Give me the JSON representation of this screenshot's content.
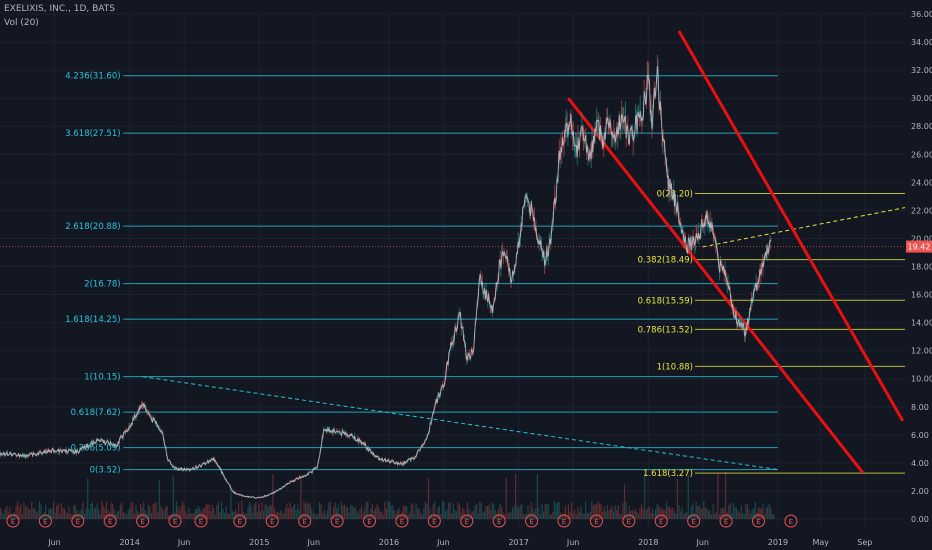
{
  "header": {
    "title": "EXELIXIS, INC., 1D, BATS",
    "volume_label": "Vol (20)"
  },
  "chart_data": {
    "type": "line",
    "price_axis": {
      "ticks": [
        0,
        2,
        4,
        6,
        8,
        10,
        12,
        14,
        16,
        18,
        20,
        22,
        24,
        26,
        28,
        30,
        32,
        34,
        36
      ]
    },
    "time_axis": {
      "labels": [
        "Jun",
        "2014",
        "Jun",
        "2015",
        "Jun",
        "2016",
        "Jun",
        "2017",
        "Jun",
        "2018",
        "Jun",
        "2019",
        "May",
        "Sep"
      ],
      "positions": [
        2013.42,
        2014.0,
        2014.42,
        2015.0,
        2015.42,
        2016.0,
        2016.42,
        2017.0,
        2017.42,
        2018.0,
        2018.42,
        2019.0,
        2019.33,
        2019.67
      ]
    },
    "last_price": "19.42",
    "price_series": {
      "x": [
        2013.0,
        2013.2,
        2013.4,
        2013.6,
        2013.75,
        2013.9,
        2014.0,
        2014.05,
        2014.1,
        2014.15,
        2014.2,
        2014.25,
        2014.3,
        2014.35,
        2014.45,
        2014.55,
        2014.65,
        2014.8,
        2014.9,
        2015.0,
        2015.1,
        2015.2,
        2015.3,
        2015.4,
        2015.45,
        2015.5,
        2015.6,
        2015.7,
        2015.8,
        2015.9,
        2016.0,
        2016.1,
        2016.2,
        2016.3,
        2016.35,
        2016.42,
        2016.48,
        2016.55,
        2016.6,
        2016.65,
        2016.7,
        2016.75,
        2016.8,
        2016.85,
        2016.9,
        2016.95,
        2017.0,
        2017.05,
        2017.1,
        2017.15,
        2017.2,
        2017.25,
        2017.32,
        2017.4,
        2017.45,
        2017.5,
        2017.55,
        2017.6,
        2017.65,
        2017.7,
        2017.75,
        2017.8,
        2017.85,
        2017.9,
        2017.95,
        2018.0,
        2018.03,
        2018.07,
        2018.1,
        2018.15,
        2018.2,
        2018.25,
        2018.3,
        2018.35,
        2018.4,
        2018.45,
        2018.5,
        2018.55,
        2018.6,
        2018.65,
        2018.7,
        2018.75,
        2018.8,
        2018.85,
        2018.9,
        2018.95
      ],
      "close": [
        4.7,
        4.5,
        4.9,
        4.8,
        5.6,
        5.3,
        6.6,
        7.4,
        8.3,
        7.4,
        6.9,
        6.2,
        4.1,
        3.6,
        3.5,
        3.8,
        4.3,
        1.9,
        1.6,
        1.5,
        1.8,
        2.4,
        2.9,
        3.3,
        3.8,
        6.4,
        6.2,
        6.0,
        5.4,
        4.4,
        4.1,
        3.9,
        4.4,
        6.0,
        8.0,
        9.5,
        12.5,
        14.5,
        11.5,
        12.0,
        17.0,
        16.0,
        15.0,
        18.0,
        19.0,
        17.0,
        19.5,
        23.0,
        22.0,
        20.0,
        18.5,
        20.0,
        26.0,
        28.5,
        26.5,
        27.5,
        25.5,
        28.0,
        27.0,
        28.5,
        27.5,
        29.0,
        27.0,
        28.0,
        29.0,
        31.0,
        28.5,
        32.0,
        28.5,
        24.0,
        23.0,
        21.0,
        19.5,
        19.8,
        20.5,
        21.5,
        20.5,
        18.0,
        17.5,
        15.0,
        14.0,
        13.3,
        15.5,
        17.0,
        19.0,
        19.4
      ]
    },
    "fib_left": [
      {
        "label": "4.236(31.60)",
        "value": 31.6
      },
      {
        "label": "3.618(27.51)",
        "value": 27.51
      },
      {
        "label": "2.618(20.88)",
        "value": 20.88
      },
      {
        "label": "2(16.78)",
        "value": 16.78
      },
      {
        "label": "1.618(14.25)",
        "value": 14.25
      },
      {
        "label": "1(10.15)",
        "value": 10.15
      },
      {
        "label": "0.618(7.62)",
        "value": 7.62
      },
      {
        "label": "0.236(5.09)",
        "value": 5.09
      },
      {
        "label": "0(3.52)",
        "value": 3.52
      }
    ],
    "fib_right": [
      {
        "label": "0(23.20)",
        "value": 23.2
      },
      {
        "label": "0.382(18.49)",
        "value": 18.49
      },
      {
        "label": "0.618(15.59)",
        "value": 15.59
      },
      {
        "label": "0.786(13.52)",
        "value": 13.52
      },
      {
        "label": "1(10.88)",
        "value": 10.88
      },
      {
        "label": "1.618(3.27)",
        "value": 3.27
      }
    ],
    "earnings_marker": "E",
    "earnings_x": [
      2013.1,
      2013.35,
      2013.6,
      2013.85,
      2014.1,
      2014.35,
      2014.55,
      2014.85,
      2015.1,
      2015.35,
      2015.6,
      2015.85,
      2016.1,
      2016.35,
      2016.6,
      2016.85,
      2017.1,
      2017.35,
      2017.6,
      2017.85,
      2018.1,
      2018.35,
      2018.6,
      2018.85,
      2019.1
    ],
    "colors": {
      "background": "#131722",
      "fib_left": "#26c6da",
      "fib_right": "#e6e53a",
      "channel": "#e81010",
      "candle_up": "#26a69a",
      "candle_down": "#ef5350"
    }
  }
}
